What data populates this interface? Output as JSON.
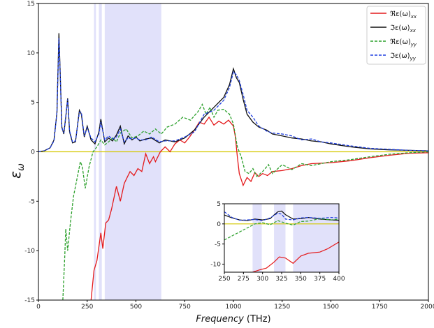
{
  "chart_data": {
    "type": "line",
    "xlabel_word": "Frequency",
    "xlabel_unit": "(THz)",
    "ylabel_sym": "ε",
    "ylabel_sub": "ω",
    "xlim": [
      0,
      2000
    ],
    "ylim": [
      -15,
      15
    ],
    "xticks": [
      0,
      250,
      500,
      750,
      1000,
      1250,
      1500,
      1750,
      2000
    ],
    "yticks": [
      -15,
      -10,
      -5,
      0,
      5,
      10,
      15
    ],
    "legend_position": "top-right",
    "zero_line_color": "#d4c800",
    "shaded_regions": [
      [
        285,
        295
      ],
      [
        310,
        325
      ],
      [
        340,
        630
      ]
    ],
    "shade_color": "#c8c8f5",
    "series": [
      {
        "name": "ℜε(ω)xx",
        "legend_main": "ℜε(ω)",
        "legend_sub": "xx",
        "color": "#e41a1c",
        "dash": "solid",
        "x": [
          270,
          285,
          300,
          320,
          330,
          345,
          360,
          375,
          400,
          420,
          440,
          455,
          470,
          490,
          510,
          530,
          550,
          570,
          590,
          600,
          625,
          650,
          675,
          700,
          725,
          750,
          775,
          800,
          825,
          850,
          875,
          900,
          925,
          950,
          975,
          1000,
          1010,
          1020,
          1030,
          1050,
          1070,
          1090,
          1110,
          1130,
          1150,
          1175,
          1200,
          1250,
          1300,
          1350,
          1400,
          1500,
          1600,
          1700,
          1800,
          1900,
          2000
        ],
        "y": [
          -15,
          -12,
          -11,
          -8.2,
          -9.8,
          -7.2,
          -6.9,
          -5.8,
          -3.5,
          -5,
          -3.2,
          -2.6,
          -2,
          -2.4,
          -1.7,
          -2,
          -0.2,
          -1.2,
          -0.5,
          -1,
          0,
          0.5,
          0,
          0.8,
          1.2,
          0.9,
          1.5,
          2.2,
          3,
          2.8,
          3.5,
          2.7,
          3.1,
          2.8,
          3.2,
          2.6,
          1.5,
          -0.5,
          -2.2,
          -3.4,
          -2.6,
          -3,
          -2.1,
          -2.5,
          -2.2,
          -2.4,
          -2.0,
          -1.9,
          -1.7,
          -1.4,
          -1.2,
          -1.1,
          -0.9,
          -0.6,
          -0.35,
          -0.15,
          -0.1
        ]
      },
      {
        "name": "ℑε(ω)xx",
        "legend_main": "ℑε(ω)",
        "legend_sub": "xx",
        "color": "#111111",
        "dash": "solid",
        "x": [
          0,
          30,
          60,
          80,
          95,
          105,
          110,
          120,
          130,
          140,
          150,
          160,
          175,
          190,
          210,
          220,
          235,
          250,
          270,
          290,
          310,
          320,
          340,
          360,
          380,
          400,
          420,
          440,
          460,
          480,
          500,
          520,
          550,
          580,
          620,
          650,
          700,
          750,
          800,
          850,
          900,
          950,
          980,
          1000,
          1015,
          1030,
          1050,
          1070,
          1100,
          1130,
          1170,
          1200,
          1250,
          1300,
          1350,
          1400,
          1450,
          1500,
          1600,
          1700,
          1800,
          1900,
          2000
        ],
        "y": [
          0,
          0.1,
          0.4,
          1.2,
          4,
          12,
          9,
          2.5,
          1.8,
          3.5,
          5.4,
          2,
          0.9,
          1,
          4.2,
          3.8,
          1.5,
          2.6,
          1.2,
          0.8,
          2,
          3.3,
          1,
          1.4,
          1.1,
          1.7,
          2.6,
          0.8,
          1.6,
          1.2,
          1.5,
          1.1,
          1.3,
          1.4,
          0.9,
          1.2,
          1.0,
          1.4,
          2.2,
          3.5,
          4.5,
          5.5,
          6.8,
          8.4,
          7.5,
          7.0,
          5.3,
          3.8,
          3.0,
          2.5,
          2.2,
          1.8,
          1.6,
          1.4,
          1.3,
          1.1,
          1.0,
          0.8,
          0.5,
          0.3,
          0.2,
          0.15,
          0.1
        ]
      },
      {
        "name": "ℜε(ω)yy",
        "legend_main": "ℜε(ω)",
        "legend_sub": "yy",
        "color": "#2ca02c",
        "dash": "dashed",
        "x": [
          125,
          135,
          140,
          150,
          165,
          180,
          200,
          215,
          225,
          240,
          260,
          280,
          300,
          320,
          340,
          360,
          380,
          400,
          420,
          450,
          480,
          510,
          540,
          570,
          600,
          630,
          660,
          700,
          740,
          780,
          820,
          840,
          860,
          880,
          900,
          920,
          950,
          980,
          1000,
          1020,
          1040,
          1060,
          1080,
          1100,
          1120,
          1150,
          1180,
          1200,
          1250,
          1300,
          1350,
          1400,
          1500,
          1600,
          1700,
          1800,
          1900,
          2000
        ],
        "y": [
          -15,
          -10.5,
          -7.8,
          -10,
          -7,
          -4.5,
          -2.5,
          -1,
          -1.5,
          -3.7,
          -1.5,
          0,
          0.5,
          1.2,
          0.7,
          1.0,
          1.4,
          1.0,
          1.9,
          2.3,
          1.4,
          1.6,
          2.1,
          1.8,
          2.3,
          1.8,
          2.5,
          2.8,
          3.5,
          3.2,
          4.1,
          4.8,
          3.8,
          4.5,
          3.5,
          4.2,
          4.3,
          3.8,
          2.8,
          0.5,
          -0.5,
          -2.0,
          -2.2,
          -1.7,
          -2.5,
          -2.0,
          -1.3,
          -2.2,
          -1.3,
          -1.8,
          -1.2,
          -1.4,
          -1.0,
          -0.8,
          -0.5,
          -0.25,
          -0.1,
          0
        ]
      },
      {
        "name": "ℑε(ω)yy",
        "legend_main": "ℑε(ω)",
        "legend_sub": "yy",
        "color": "#1f3fe0",
        "dash": "dashed",
        "x": [
          0,
          30,
          60,
          80,
          95,
          105,
          110,
          120,
          130,
          140,
          150,
          160,
          175,
          190,
          210,
          220,
          235,
          250,
          270,
          290,
          310,
          320,
          340,
          360,
          380,
          400,
          420,
          440,
          460,
          480,
          500,
          520,
          550,
          580,
          620,
          650,
          700,
          750,
          800,
          850,
          900,
          950,
          980,
          1000,
          1015,
          1030,
          1050,
          1070,
          1100,
          1130,
          1170,
          1200,
          1250,
          1300,
          1350,
          1400,
          1450,
          1500,
          1600,
          1700,
          1800,
          1900,
          2000
        ],
        "y": [
          0,
          0.1,
          0.4,
          1.1,
          4,
          11.5,
          8.8,
          2.4,
          1.9,
          3.6,
          5.3,
          2.1,
          1.0,
          1.1,
          4.0,
          4.0,
          1.6,
          2.4,
          1.4,
          1.0,
          1.8,
          3.0,
          1.2,
          1.6,
          1.3,
          1.5,
          2.3,
          1.0,
          1.4,
          1.3,
          1.4,
          1.2,
          1.2,
          1.5,
          1.0,
          1.1,
          1.1,
          1.5,
          2.0,
          3.8,
          4.2,
          5.2,
          6.5,
          8.1,
          7.8,
          7.2,
          5.8,
          4.2,
          3.5,
          2.6,
          2.1,
          1.9,
          1.8,
          1.6,
          1.2,
          1.3,
          1.0,
          0.9,
          0.6,
          0.35,
          0.25,
          0.15,
          0.1
        ]
      }
    ],
    "inset": {
      "xlim": [
        250,
        400
      ],
      "ylim": [
        -12,
        5
      ],
      "xticks": [
        250,
        275,
        300,
        325,
        350,
        375,
        400
      ],
      "yticks": [
        -10,
        -5,
        0,
        5
      ],
      "shaded_regions": [
        [
          287,
          299
        ],
        [
          315,
          330
        ],
        [
          340,
          400
        ]
      ],
      "series": [
        {
          "name": "ℜε(ω)xx",
          "color": "#e41a1c",
          "dash": "solid",
          "x": [
            287,
            295,
            305,
            315,
            322,
            330,
            340,
            350,
            360,
            375,
            385,
            400
          ],
          "y": [
            -12,
            -11.5,
            -11,
            -9.5,
            -8.2,
            -8.5,
            -9.8,
            -8,
            -7.3,
            -7,
            -6.2,
            -4.5
          ]
        },
        {
          "name": "ℑε(ω)xx",
          "color": "#111111",
          "dash": "solid",
          "x": [
            250,
            260,
            270,
            280,
            290,
            300,
            310,
            315,
            320,
            325,
            330,
            340,
            350,
            360,
            375,
            390,
            400
          ],
          "y": [
            2.2,
            1.5,
            1.0,
            0.8,
            1.2,
            1.0,
            1.3,
            2.2,
            3.0,
            3.2,
            2.3,
            1.2,
            1.3,
            1.6,
            1.2,
            1.0,
            0.9
          ]
        },
        {
          "name": "ℜε(ω)yy",
          "color": "#2ca02c",
          "dash": "dashed",
          "x": [
            250,
            265,
            280,
            290,
            300,
            310,
            320,
            330,
            340,
            350,
            360,
            375,
            390,
            400
          ],
          "y": [
            -4,
            -2.5,
            -1,
            0,
            0.3,
            -0.2,
            0.8,
            0.2,
            -0.3,
            0.6,
            0.7,
            1.3,
            1.0,
            1.2
          ]
        },
        {
          "name": "ℑε(ω)yy",
          "color": "#1f3fe0",
          "dash": "dashed",
          "x": [
            250,
            260,
            270,
            280,
            290,
            300,
            310,
            320,
            325,
            330,
            340,
            350,
            360,
            375,
            390,
            400
          ],
          "y": [
            3.0,
            1.6,
            0.9,
            1.0,
            1.1,
            0.8,
            1.5,
            2.7,
            2.4,
            1.2,
            1.0,
            1.5,
            1.6,
            1.4,
            1.6,
            1.5
          ]
        }
      ]
    }
  }
}
